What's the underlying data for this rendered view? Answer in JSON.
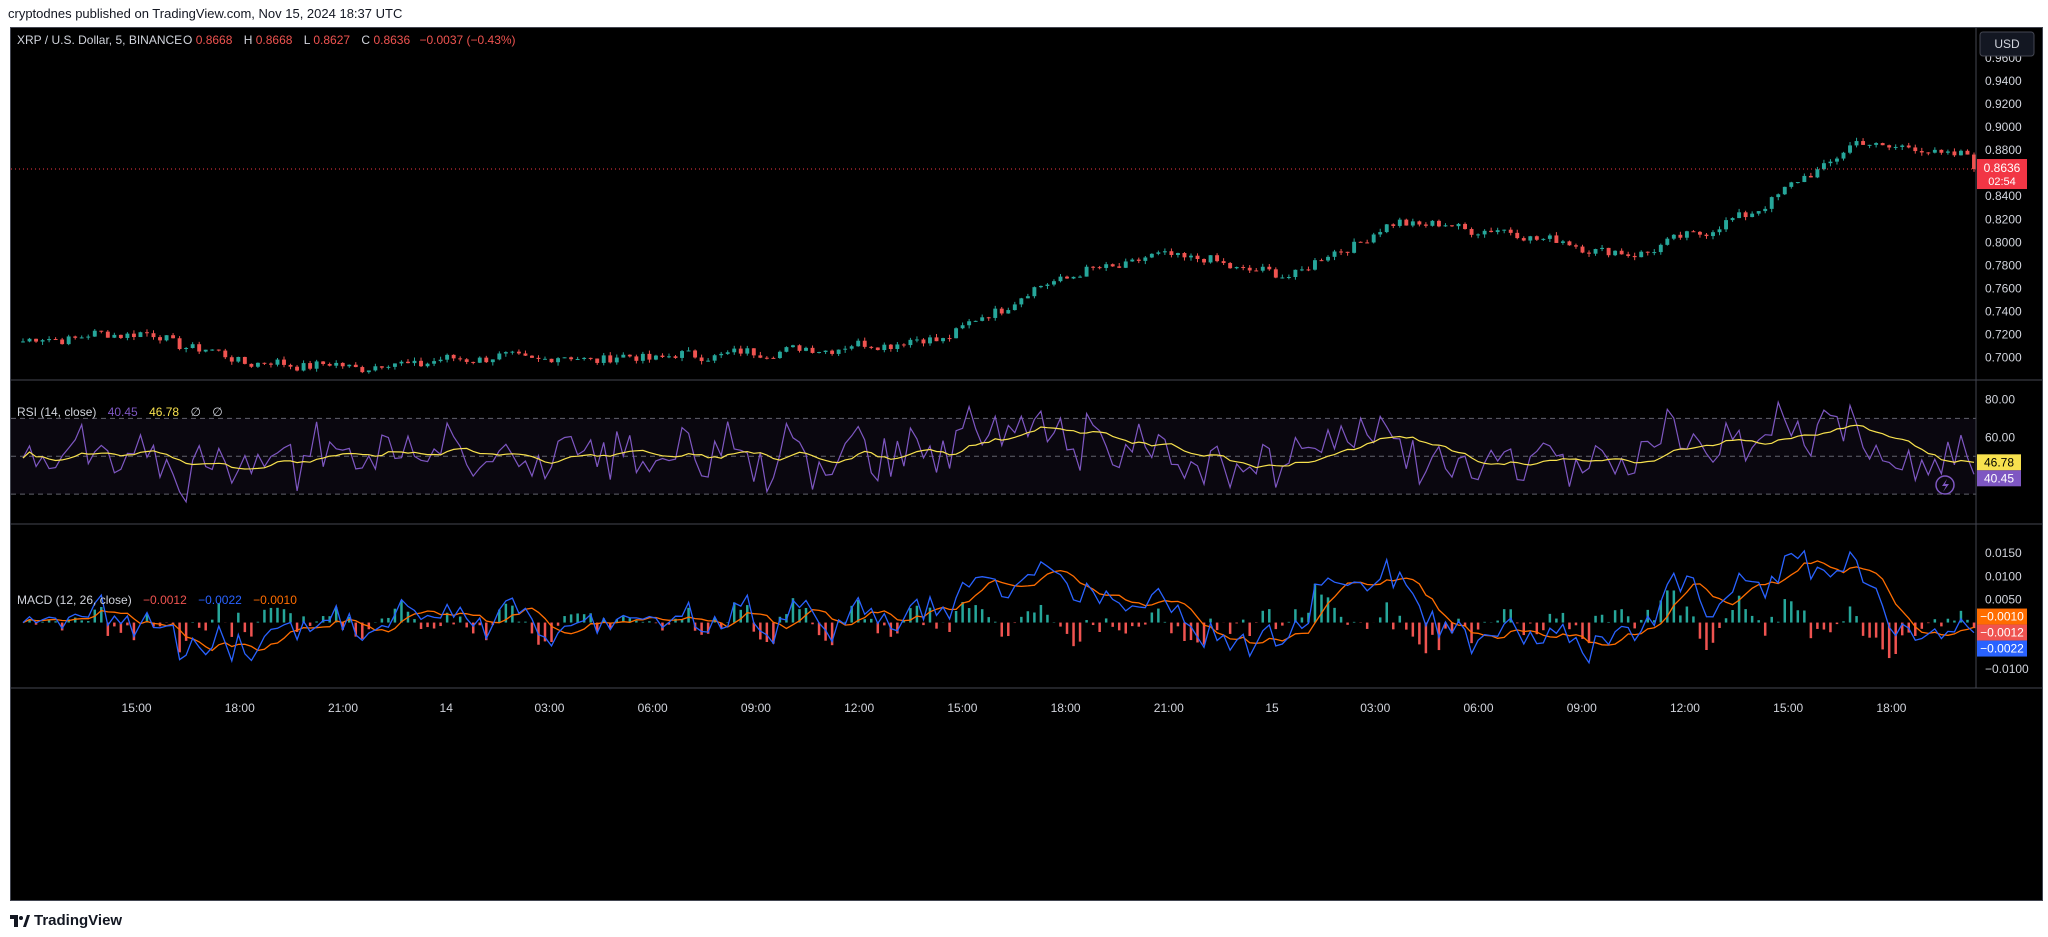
{
  "header": {
    "publisher_line": "cryptodnes published on TradingView.com, Nov 15, 2024 18:37 UTC"
  },
  "footer": {
    "brand": "TradingView",
    "logo": "tradingview-logo-icon"
  },
  "colors": {
    "up": "#26a69a",
    "down": "#ef5350",
    "rsi": "#7e57c2",
    "rsi_ma": "#f7e14e",
    "macd": "#2962ff",
    "signal": "#ff6d00",
    "price_line": "#f23645",
    "grid_dash": "#787b86"
  },
  "main_pane": {
    "symbol": "XRP / U.S. Dollar, 5, BINANCE",
    "ohlc": {
      "o_label": "O",
      "o": "0.8668",
      "h_label": "H",
      "h": "0.8668",
      "l_label": "L",
      "l": "0.8627",
      "c_label": "C",
      "c": "0.8636",
      "change": "−0.0037 (−0.43%)"
    },
    "currency_button": "USD",
    "price_axis": [
      "0.9600",
      "0.9400",
      "0.9200",
      "0.9000",
      "0.8800",
      "0.8600",
      "0.8400",
      "0.8200",
      "0.8000",
      "0.7800",
      "0.7600",
      "0.7400",
      "0.7200",
      "0.7000"
    ],
    "last_price": "0.8636",
    "countdown": "02:54"
  },
  "rsi_pane": {
    "label": "RSI (14, close)",
    "value_rsi": "40.45",
    "value_ma": "46.78",
    "empty1": "∅",
    "empty2": "∅",
    "axis": [
      "80.00",
      "60.00"
    ],
    "badge_ma": "46.78",
    "badge_rsi": "40.45"
  },
  "macd_pane": {
    "label": "MACD (12, 26, close)",
    "v_hist": "−0.0012",
    "v_macd": "−0.0022",
    "v_signal": "−0.0010",
    "axis": [
      "0.0150",
      "0.0100",
      "0.0050",
      "−0.0100"
    ],
    "badge_signal": "−0.0010",
    "badge_hist": "−0.0012",
    "badge_macd": "−0.0022"
  },
  "time_axis": [
    "15:00",
    "18:00",
    "21:00",
    "14",
    "03:00",
    "06:00",
    "09:00",
    "12:00",
    "15:00",
    "18:00",
    "21:00",
    "15",
    "03:00",
    "06:00",
    "09:00",
    "12:00",
    "15:00",
    "18:00"
  ],
  "chart_data": {
    "type": "line",
    "title": "XRP / U.S. Dollar, 5, BINANCE",
    "x": [
      "13 15:00",
      "13 18:00",
      "13 21:00",
      "14 00:00",
      "14 03:00",
      "14 06:00",
      "14 09:00",
      "14 12:00",
      "14 15:00",
      "14 18:00",
      "14 21:00",
      "15 00:00",
      "15 03:00",
      "15 06:00",
      "15 09:00",
      "15 12:00",
      "15 15:00",
      "15 18:00"
    ],
    "series": [
      {
        "values": [
          0.714,
          0.722,
          0.695,
          0.692,
          0.7,
          0.699,
          0.702,
          0.708,
          0.716,
          0.768,
          0.79,
          0.77,
          0.818,
          0.808,
          0.788,
          0.822,
          0.887,
          0.874
        ]
      }
    ],
    "xlabel": "",
    "ylabel": "",
    "ylim": [
      0.69,
      0.96
    ],
    "grid": false
  }
}
